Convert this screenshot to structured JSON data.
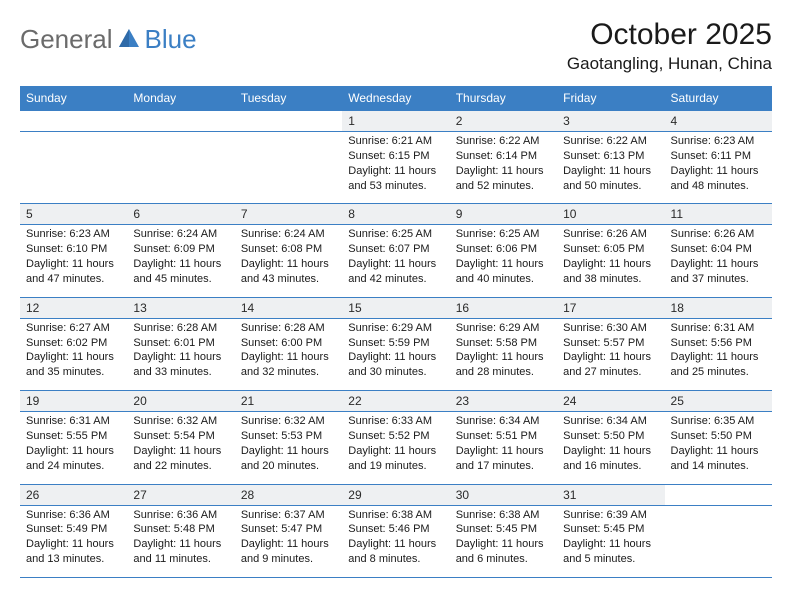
{
  "logo": {
    "general": "General",
    "blue": "Blue"
  },
  "title": "October 2025",
  "location": "Gaotangling, Hunan, China",
  "colors": {
    "header_bg": "#3b7fc4",
    "header_text": "#ffffff",
    "daynum_bg": "#eef0f2",
    "border": "#3b7fc4",
    "logo_gray": "#6b6b6b",
    "logo_blue": "#3b7fc4"
  },
  "days_of_week": [
    "Sunday",
    "Monday",
    "Tuesday",
    "Wednesday",
    "Thursday",
    "Friday",
    "Saturday"
  ],
  "weeks": [
    [
      null,
      null,
      null,
      {
        "d": "1",
        "sr": "6:21 AM",
        "ss": "6:15 PM",
        "dl": "11 hours and 53 minutes."
      },
      {
        "d": "2",
        "sr": "6:22 AM",
        "ss": "6:14 PM",
        "dl": "11 hours and 52 minutes."
      },
      {
        "d": "3",
        "sr": "6:22 AM",
        "ss": "6:13 PM",
        "dl": "11 hours and 50 minutes."
      },
      {
        "d": "4",
        "sr": "6:23 AM",
        "ss": "6:11 PM",
        "dl": "11 hours and 48 minutes."
      }
    ],
    [
      {
        "d": "5",
        "sr": "6:23 AM",
        "ss": "6:10 PM",
        "dl": "11 hours and 47 minutes."
      },
      {
        "d": "6",
        "sr": "6:24 AM",
        "ss": "6:09 PM",
        "dl": "11 hours and 45 minutes."
      },
      {
        "d": "7",
        "sr": "6:24 AM",
        "ss": "6:08 PM",
        "dl": "11 hours and 43 minutes."
      },
      {
        "d": "8",
        "sr": "6:25 AM",
        "ss": "6:07 PM",
        "dl": "11 hours and 42 minutes."
      },
      {
        "d": "9",
        "sr": "6:25 AM",
        "ss": "6:06 PM",
        "dl": "11 hours and 40 minutes."
      },
      {
        "d": "10",
        "sr": "6:26 AM",
        "ss": "6:05 PM",
        "dl": "11 hours and 38 minutes."
      },
      {
        "d": "11",
        "sr": "6:26 AM",
        "ss": "6:04 PM",
        "dl": "11 hours and 37 minutes."
      }
    ],
    [
      {
        "d": "12",
        "sr": "6:27 AM",
        "ss": "6:02 PM",
        "dl": "11 hours and 35 minutes."
      },
      {
        "d": "13",
        "sr": "6:28 AM",
        "ss": "6:01 PM",
        "dl": "11 hours and 33 minutes."
      },
      {
        "d": "14",
        "sr": "6:28 AM",
        "ss": "6:00 PM",
        "dl": "11 hours and 32 minutes."
      },
      {
        "d": "15",
        "sr": "6:29 AM",
        "ss": "5:59 PM",
        "dl": "11 hours and 30 minutes."
      },
      {
        "d": "16",
        "sr": "6:29 AM",
        "ss": "5:58 PM",
        "dl": "11 hours and 28 minutes."
      },
      {
        "d": "17",
        "sr": "6:30 AM",
        "ss": "5:57 PM",
        "dl": "11 hours and 27 minutes."
      },
      {
        "d": "18",
        "sr": "6:31 AM",
        "ss": "5:56 PM",
        "dl": "11 hours and 25 minutes."
      }
    ],
    [
      {
        "d": "19",
        "sr": "6:31 AM",
        "ss": "5:55 PM",
        "dl": "11 hours and 24 minutes."
      },
      {
        "d": "20",
        "sr": "6:32 AM",
        "ss": "5:54 PM",
        "dl": "11 hours and 22 minutes."
      },
      {
        "d": "21",
        "sr": "6:32 AM",
        "ss": "5:53 PM",
        "dl": "11 hours and 20 minutes."
      },
      {
        "d": "22",
        "sr": "6:33 AM",
        "ss": "5:52 PM",
        "dl": "11 hours and 19 minutes."
      },
      {
        "d": "23",
        "sr": "6:34 AM",
        "ss": "5:51 PM",
        "dl": "11 hours and 17 minutes."
      },
      {
        "d": "24",
        "sr": "6:34 AM",
        "ss": "5:50 PM",
        "dl": "11 hours and 16 minutes."
      },
      {
        "d": "25",
        "sr": "6:35 AM",
        "ss": "5:50 PM",
        "dl": "11 hours and 14 minutes."
      }
    ],
    [
      {
        "d": "26",
        "sr": "6:36 AM",
        "ss": "5:49 PM",
        "dl": "11 hours and 13 minutes."
      },
      {
        "d": "27",
        "sr": "6:36 AM",
        "ss": "5:48 PM",
        "dl": "11 hours and 11 minutes."
      },
      {
        "d": "28",
        "sr": "6:37 AM",
        "ss": "5:47 PM",
        "dl": "11 hours and 9 minutes."
      },
      {
        "d": "29",
        "sr": "6:38 AM",
        "ss": "5:46 PM",
        "dl": "11 hours and 8 minutes."
      },
      {
        "d": "30",
        "sr": "6:38 AM",
        "ss": "5:45 PM",
        "dl": "11 hours and 6 minutes."
      },
      {
        "d": "31",
        "sr": "6:39 AM",
        "ss": "5:45 PM",
        "dl": "11 hours and 5 minutes."
      },
      null
    ]
  ],
  "labels": {
    "sunrise": "Sunrise: ",
    "sunset": "Sunset: ",
    "daylight": "Daylight: "
  }
}
